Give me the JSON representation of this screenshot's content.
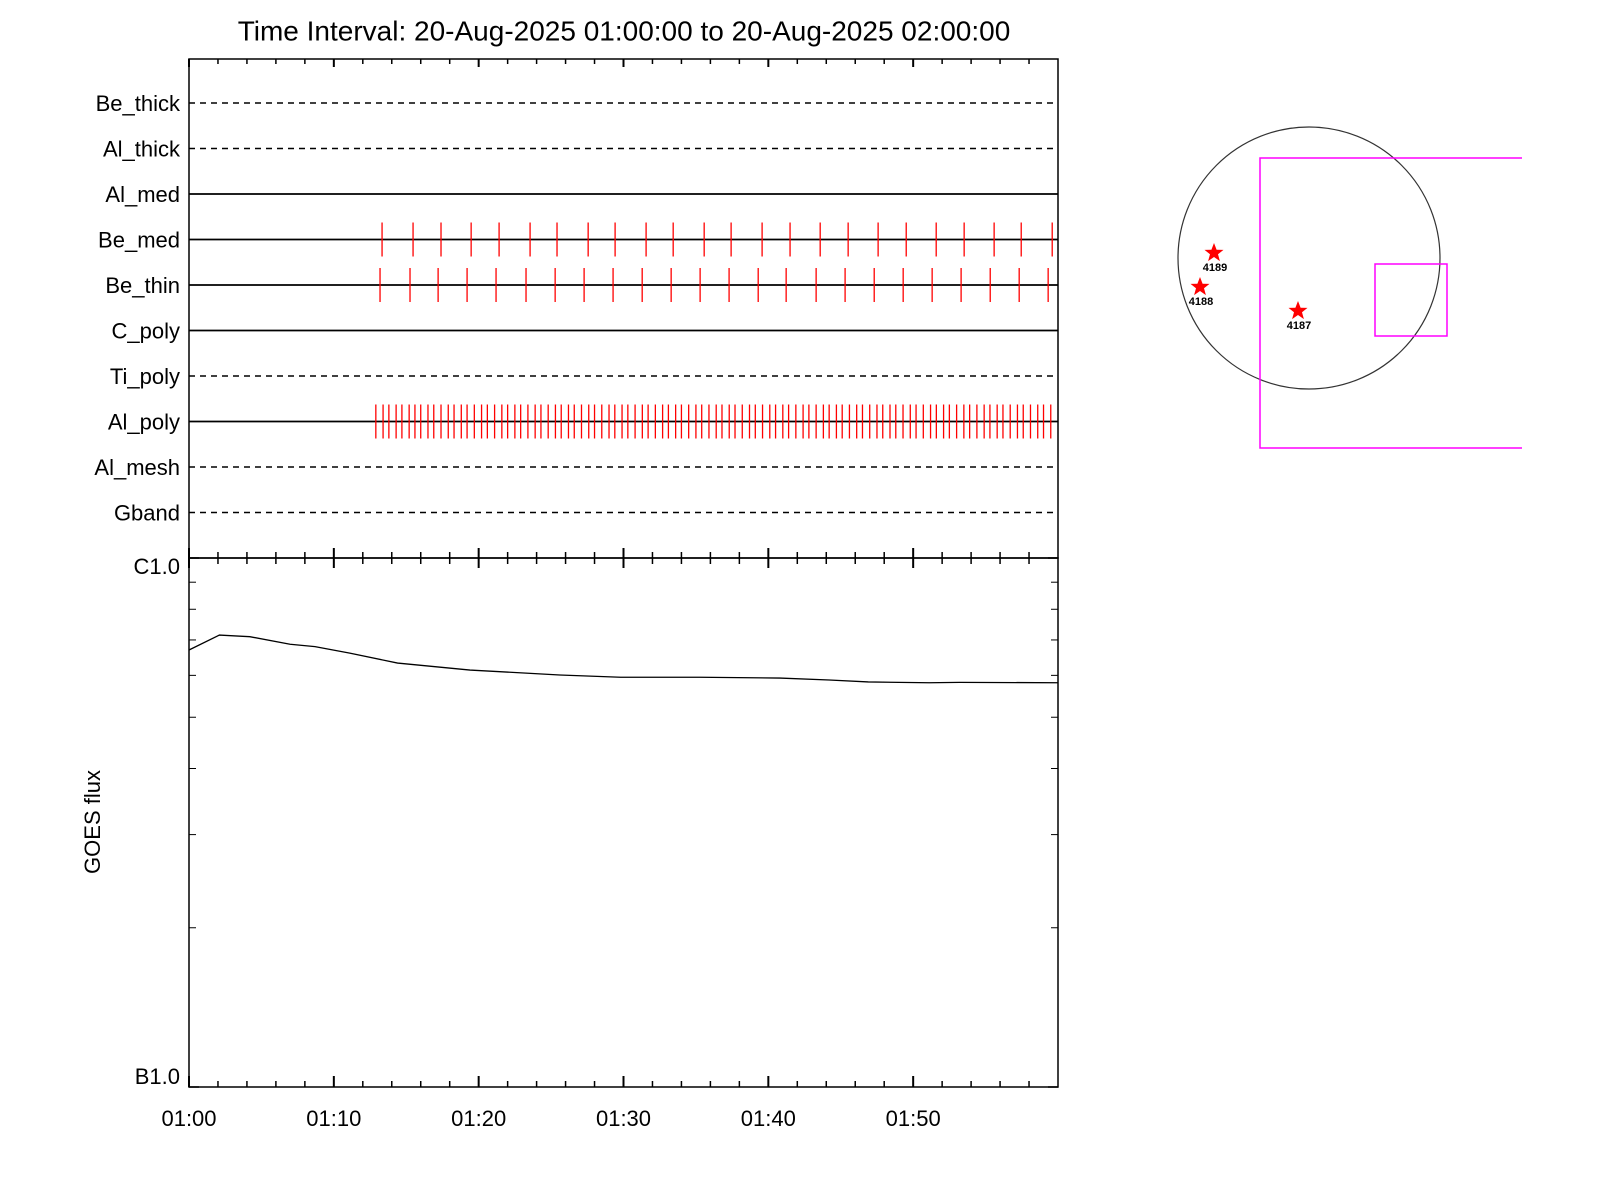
{
  "chart_data": [
    {
      "type": "timeline",
      "title": "Time Interval: 20-Aug-2025 01:00:00 to 20-Aug-2025 02:00:00",
      "categories": [
        "Be_thick",
        "Al_thick",
        "Al_med",
        "Be_med",
        "Be_thin",
        "C_poly",
        "Ti_poly",
        "Al_poly",
        "Al_mesh",
        "Gband"
      ],
      "linestyles": [
        "dashed",
        "dashed",
        "solid",
        "solid",
        "solid",
        "solid",
        "dashed",
        "solid",
        "dashed",
        "dashed"
      ],
      "color": "#ff0000",
      "xlim": [
        0,
        60
      ],
      "events": [
        null,
        null,
        null,
        [
          13.33,
          15.47,
          17.4,
          19.48,
          21.41,
          23.55,
          25.41,
          27.56,
          29.42,
          31.56,
          33.43,
          35.57,
          37.43,
          39.57,
          41.5,
          43.58,
          45.51,
          47.58,
          49.52,
          51.59,
          53.52,
          55.59,
          57.46,
          59.6
        ],
        [
          13.19,
          15.26,
          17.2,
          19.2,
          21.2,
          23.27,
          25.28,
          27.28,
          29.28,
          31.29,
          33.29,
          35.29,
          37.29,
          39.3,
          41.23,
          43.3,
          45.3,
          47.31,
          49.31,
          51.31,
          53.31,
          55.32,
          57.32,
          59.32
        ],
        null,
        null,
        [
          12.9,
          13.4,
          13.8,
          14.3,
          14.7,
          15.2,
          15.6,
          16.0,
          16.5,
          16.9,
          17.4,
          17.9,
          18.3,
          18.8,
          19.2,
          19.7,
          20.2,
          20.6,
          21.1,
          21.6,
          22.0,
          22.5,
          22.9,
          23.4,
          23.9,
          24.3,
          24.8,
          25.3,
          25.7,
          26.2,
          26.6,
          27.1,
          27.6,
          28.0,
          28.5,
          29.0,
          29.4,
          29.9,
          30.3,
          30.8,
          31.3,
          31.7,
          32.2,
          32.7,
          33.1,
          33.6,
          34.0,
          34.5,
          35.0,
          35.4,
          35.9,
          36.4,
          36.8,
          37.3,
          37.7,
          38.2,
          38.7,
          39.1,
          39.6,
          40.1,
          40.5,
          41.0,
          41.4,
          41.9,
          42.4,
          42.8,
          43.3,
          43.8,
          44.2,
          44.7,
          45.1,
          45.6,
          46.1,
          46.5,
          47.0,
          47.5,
          47.9,
          48.4,
          48.8,
          49.3,
          49.8,
          50.2,
          50.7,
          51.2,
          51.6,
          52.1,
          52.5,
          53.0,
          53.5,
          53.9,
          54.4,
          54.9,
          55.3,
          55.8,
          56.2,
          56.7,
          57.2,
          57.6,
          58.1,
          58.6,
          59.0,
          59.5
        ],
        null,
        null
      ]
    },
    {
      "type": "line",
      "ylabel": "GOES flux",
      "color": "#000000",
      "log": true,
      "x": [
        0,
        2.1,
        4.2,
        6.98,
        8.7,
        11.1,
        14.4,
        19.4,
        25.6,
        29.8,
        35.3,
        40.8,
        44.2,
        46.9,
        51.1,
        53.2,
        60
      ],
      "values": [
        6.7e-07,
        7.15e-07,
        7.1e-07,
        6.87e-07,
        6.8e-07,
        6.61e-07,
        6.33e-07,
        6.14e-07,
        6.01e-07,
        5.95e-07,
        5.95e-07,
        5.93e-07,
        5.88e-07,
        5.83e-07,
        5.81e-07,
        5.82e-07,
        5.81e-07
      ],
      "xlim": [
        0,
        60
      ],
      "xticks": [
        {
          "value": 0,
          "label": "01:00"
        },
        {
          "value": 10,
          "label": "01:10"
        },
        {
          "value": 20,
          "label": "01:20"
        },
        {
          "value": 30,
          "label": "01:30"
        },
        {
          "value": 40,
          "label": "01:40"
        },
        {
          "value": 50,
          "label": "01:50"
        }
      ],
      "xminorticks": [
        2,
        4,
        6,
        8,
        12,
        14,
        16,
        18,
        22,
        24,
        26,
        28,
        32,
        34,
        36,
        38,
        42,
        44,
        46,
        48,
        52,
        54,
        56,
        58
      ],
      "ylim": [
        1e-07,
        1e-06
      ],
      "yticks": [
        {
          "value": 1e-07,
          "label": "B1.0"
        },
        {
          "value": 1e-06,
          "label": "C1.0"
        }
      ],
      "yminorticks": [
        2e-07,
        3e-07,
        4e-07,
        5e-07,
        6e-07,
        7e-07,
        8e-07,
        9e-07
      ]
    }
  ],
  "solar_map": {
    "regions": [
      {
        "label": "4189"
      },
      {
        "label": "4188"
      },
      {
        "label": "4187"
      }
    ]
  }
}
